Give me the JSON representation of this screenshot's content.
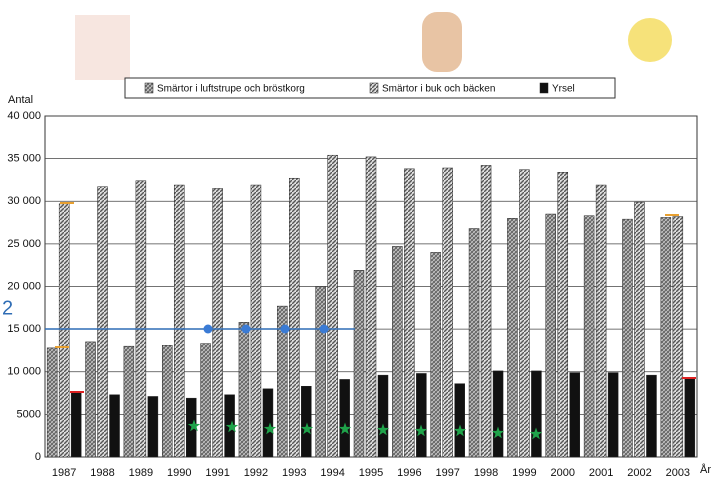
{
  "chart_data": {
    "type": "bar",
    "y_label": "Antal",
    "x_label": "År",
    "annotation": "2",
    "categories": [
      "1987",
      "1988",
      "1989",
      "1990",
      "1991",
      "1992",
      "1993",
      "1994",
      "1995",
      "1996",
      "1997",
      "1998",
      "1999",
      "2000",
      "2001",
      "2002",
      "2003"
    ],
    "series": [
      {
        "name": "Smärtor i luftstrupe och bröstkorg",
        "color": "#6a6a6a",
        "values": [
          12800,
          13500,
          13000,
          13100,
          13300,
          15800,
          17700,
          20000,
          21900,
          24700,
          24000,
          26800,
          28000,
          28500,
          28300,
          27900,
          28100
        ]
      },
      {
        "name": "Smärtor i buk och bäcken",
        "color": "#555555",
        "values": [
          29700,
          31700,
          32400,
          31900,
          31500,
          31900,
          32700,
          35400,
          35200,
          33800,
          33900,
          34200,
          33700,
          33400,
          31900,
          29900,
          28200
        ]
      },
      {
        "name": "Yrsel",
        "color": "#111111",
        "values": [
          7600,
          7300,
          7100,
          6900,
          7300,
          8000,
          8300,
          9100,
          9600,
          9800,
          8600,
          10100,
          10100,
          9900,
          9900,
          9600,
          9300
        ]
      }
    ],
    "ylim": [
      0,
      40000
    ],
    "yticks": [
      0,
      5000,
      {
        "value": 10000,
        "label": "10 000"
      },
      {
        "value": 15000,
        "label": "15 000"
      },
      {
        "value": 20000,
        "label": "20 000"
      },
      {
        "value": 25000,
        "label": "25 000"
      },
      {
        "value": 30000,
        "label": "30 000"
      },
      {
        "value": 35000,
        "label": "35 000"
      },
      {
        "value": 40000,
        "label": "40 000"
      }
    ],
    "grid": true
  }
}
